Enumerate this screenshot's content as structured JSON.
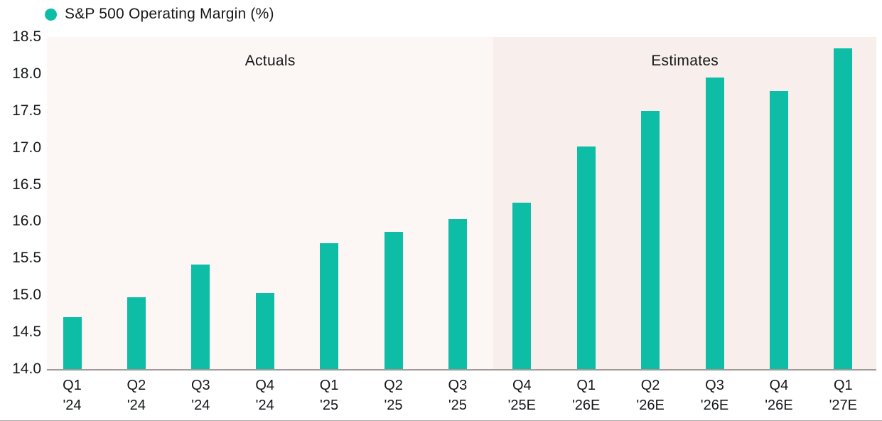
{
  "page": {
    "background_color": "#ffffff",
    "bottom_rule_color": "#aaa4a1",
    "text_color": "#15171a",
    "axis_line_color": "#a09a98"
  },
  "legend": {
    "label": "S&P 500 Operating Margin (%)",
    "marker": "circle",
    "marker_color": "#0dbda6"
  },
  "chart_data": {
    "type": "bar",
    "title": "S&P 500 Operating Margin (%)",
    "xlabel": "",
    "ylabel": "",
    "ylim": [
      14.0,
      18.5
    ],
    "ytick_step": 0.5,
    "yticks": [
      "18.5",
      "18.0",
      "17.5",
      "17.0",
      "16.5",
      "16.0",
      "15.5",
      "15.0",
      "14.5",
      "14.0"
    ],
    "grid": false,
    "legend_position": "top-left",
    "bar_color": "#0dbda6",
    "categories": [
      "Q1 '24",
      "Q2 '24",
      "Q3 '24",
      "Q4 '24",
      "Q1 '25",
      "Q2 '25",
      "Q3 '25",
      "Q4 '25E",
      "Q1 '26E",
      "Q2 '26E",
      "Q3 '26E",
      "Q4 '26E",
      "Q1 '27E"
    ],
    "values": [
      14.7,
      14.97,
      15.42,
      15.03,
      15.71,
      15.86,
      16.03,
      16.26,
      17.02,
      17.5,
      17.95,
      17.77,
      18.35
    ],
    "sections": [
      {
        "label": "Actuals",
        "bar_count": 7,
        "background": "#fcf7f5"
      },
      {
        "label": "Estimates",
        "bar_count": 6,
        "background": "#f8efec"
      }
    ]
  }
}
